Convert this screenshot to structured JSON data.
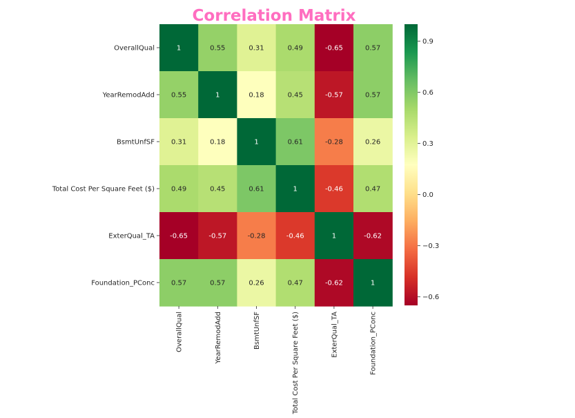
{
  "title": "Correlation Matrix",
  "colors": {
    "title": "#ff6ec0",
    "scale": [
      "#a50026",
      "#d73027",
      "#f46d43",
      "#fdae61",
      "#fee08b",
      "#ffffbf",
      "#d9ef8b",
      "#a6d96a",
      "#66bd63",
      "#1a9850",
      "#006837"
    ]
  },
  "chart_data": {
    "type": "heatmap",
    "title": "Correlation Matrix",
    "rows": [
      "OverallQual",
      "YearRemodAdd",
      "BsmtUnfSF",
      "Total Cost Per Square Feet ($)",
      "ExterQual_TA",
      "Foundation_PConc"
    ],
    "columns": [
      "OverallQual",
      "YearRemodAdd",
      "BsmtUnfSF",
      "Total Cost Per Square Feet ($)",
      "ExterQual_TA",
      "Foundation_PConc"
    ],
    "values": [
      [
        1,
        0.55,
        0.31,
        0.49,
        -0.65,
        0.57
      ],
      [
        0.55,
        1,
        0.18,
        0.45,
        -0.57,
        0.57
      ],
      [
        0.31,
        0.18,
        1,
        0.61,
        -0.28,
        0.26
      ],
      [
        0.49,
        0.45,
        0.61,
        1,
        -0.46,
        0.47
      ],
      [
        -0.65,
        -0.57,
        -0.28,
        -0.46,
        1,
        -0.62
      ],
      [
        0.57,
        0.57,
        0.26,
        0.47,
        -0.62,
        1
      ]
    ],
    "annotations": [
      [
        "1",
        "0.55",
        "0.31",
        "0.49",
        "-0.65",
        "0.57"
      ],
      [
        "0.55",
        "1",
        "0.18",
        "0.45",
        "-0.57",
        "0.57"
      ],
      [
        "0.31",
        "0.18",
        "1",
        "0.61",
        "-0.28",
        "0.26"
      ],
      [
        "0.49",
        "0.45",
        "0.61",
        "1",
        "-0.46",
        "0.47"
      ],
      [
        "-0.65",
        "-0.57",
        "-0.28",
        "-0.46",
        "1",
        "-0.62"
      ],
      [
        "0.57",
        "0.57",
        "0.26",
        "0.47",
        "-0.62",
        "1"
      ]
    ],
    "colormap": "RdYlGn",
    "vmin": -0.65,
    "vmax": 1,
    "colorbar_ticks": [
      0.9,
      0.6,
      0.3,
      0.0,
      -0.3,
      -0.6
    ],
    "colorbar_tick_labels": [
      "0.9",
      "0.6",
      "0.3",
      "0.0",
      "−0.3",
      "−0.6"
    ]
  }
}
